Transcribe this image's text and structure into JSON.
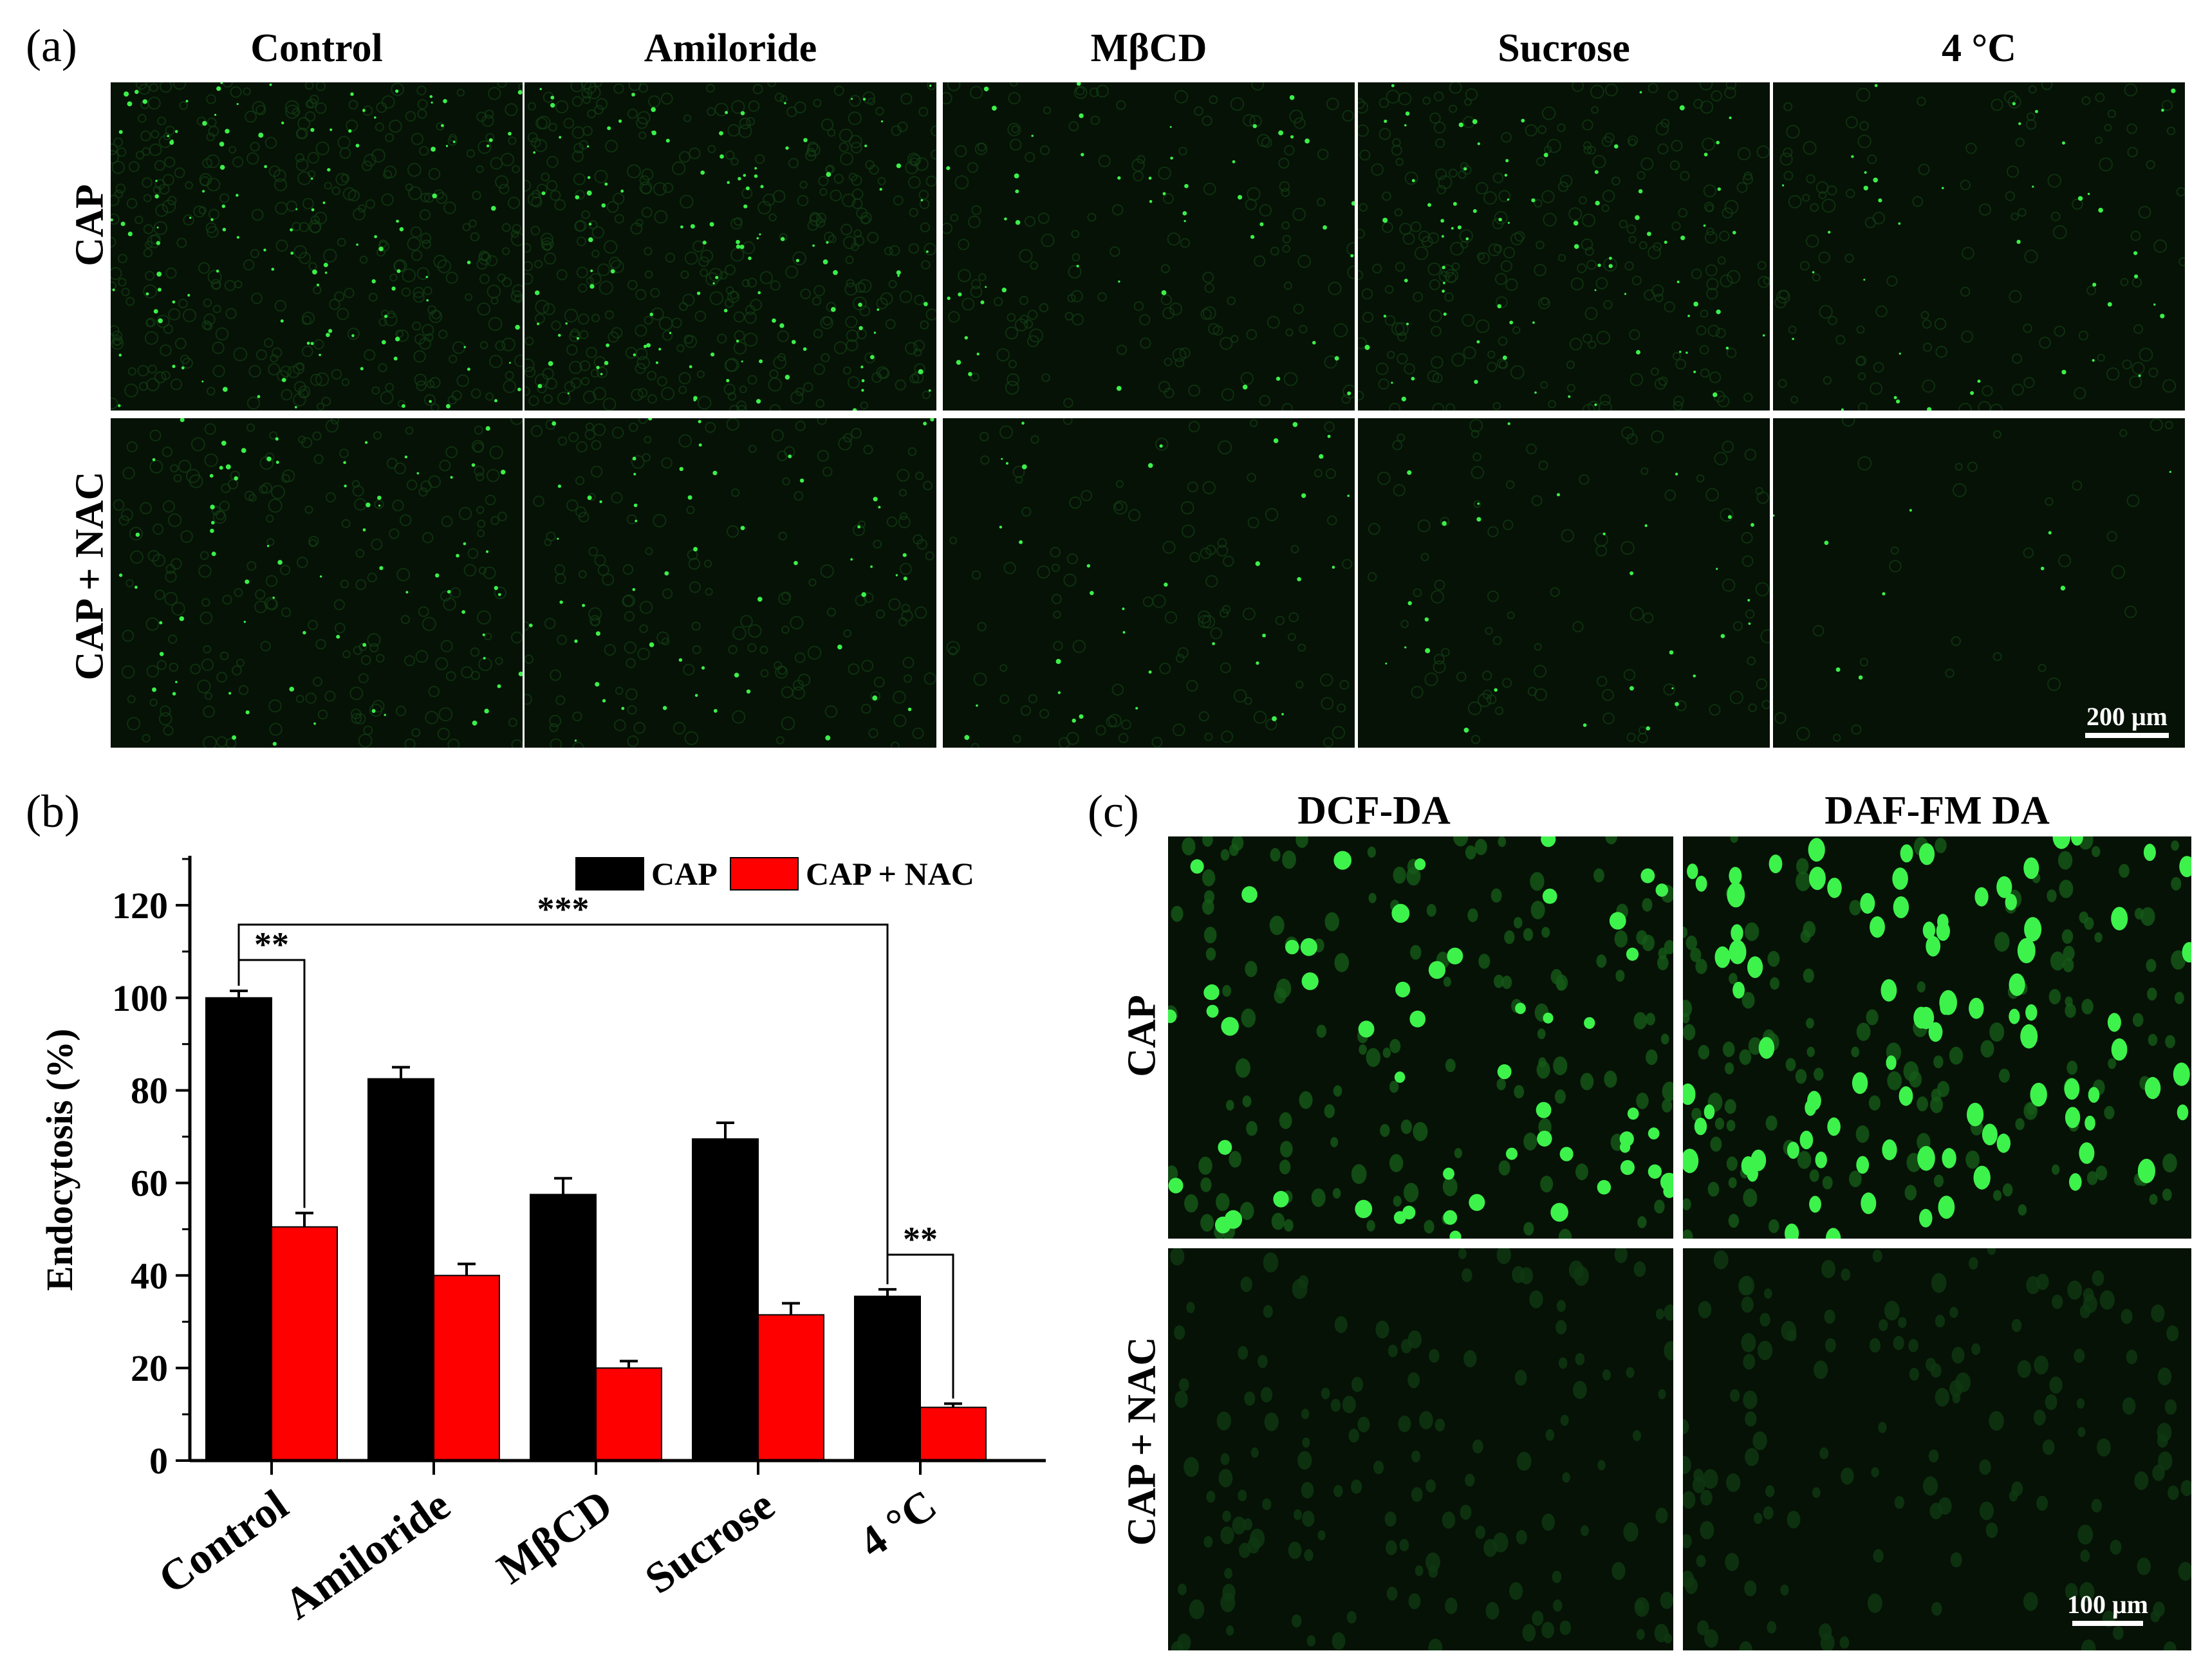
{
  "panels": {
    "a": {
      "letter": "(a)",
      "columns": [
        "Control",
        "Amiloride",
        "MβCD",
        "Sucrose",
        "4 °C"
      ],
      "rows": [
        "CAP",
        "CAP + NAC"
      ],
      "scale_bar": "200 μm"
    },
    "b": {
      "letter": "(b)"
    },
    "c": {
      "letter": "(c)",
      "columns": [
        "DCF-DA",
        "DAF-FM DA"
      ],
      "rows": [
        "CAP",
        "CAP + NAC"
      ],
      "scale_bar": "100 μm"
    }
  },
  "colors": {
    "cap": "#000000",
    "cap_nac": "#ff0000",
    "fluorescence": "#39e03a"
  },
  "chart_data": {
    "type": "bar",
    "categories": [
      "Control",
      "Amiloride",
      "MβCD",
      "Sucrose",
      "4 °C"
    ],
    "series": [
      {
        "name": "CAP",
        "values": [
          100,
          82.5,
          57.5,
          69.5,
          35.5
        ],
        "errors": [
          1.5,
          2.5,
          3.5,
          3.5,
          1.5
        ]
      },
      {
        "name": "CAP + NAC",
        "values": [
          50.5,
          40,
          20,
          31.5,
          11.5
        ],
        "errors": [
          3,
          2.5,
          1.5,
          2.5,
          0.8
        ]
      }
    ],
    "ylabel": "Endocytosis (%)",
    "ylim": [
      0,
      130
    ],
    "yticks": [
      0,
      20,
      40,
      60,
      80,
      100,
      120
    ],
    "legend": "top-right",
    "annotations": [
      {
        "label": "**",
        "from": "Control CAP",
        "to": "Control CAP + NAC"
      },
      {
        "label": "***",
        "from": "Control CAP",
        "to": "4 °C CAP"
      },
      {
        "label": "**",
        "from": "4 °C CAP",
        "to": "4 °C CAP + NAC"
      }
    ]
  }
}
